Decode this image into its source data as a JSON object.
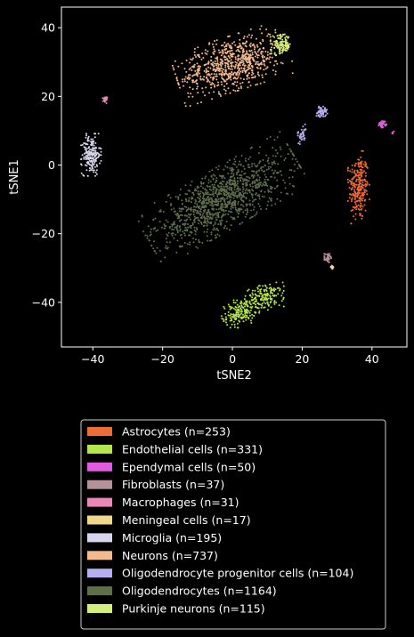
{
  "chart_data": {
    "type": "scatter",
    "title": "",
    "xlabel": "tSNE2",
    "ylabel": "tSNE1",
    "xlim": [
      -49,
      50
    ],
    "ylim": [
      -53,
      46
    ],
    "xticks": [
      -40,
      -20,
      0,
      20,
      40
    ],
    "yticks": [
      -40,
      -20,
      0,
      20,
      40
    ],
    "grid": false,
    "legend_position": "below",
    "series": [
      {
        "name": "Astrocytes (n=253)",
        "color": "#f06c36",
        "clusters": [
          {
            "cx": 36.2,
            "cy": -6.5,
            "sx": 1.4,
            "sy": 4.8,
            "rot": 0,
            "n": 253
          }
        ]
      },
      {
        "name": "Endothelial cells (n=331)",
        "color": "#b5e64e",
        "clusters": [
          {
            "cx": 2.0,
            "cy": -43.0,
            "sx": 2.4,
            "sy": 1.8,
            "rot": 20,
            "n": 170
          },
          {
            "cx": 9.5,
            "cy": -38.5,
            "sx": 2.6,
            "sy": 1.7,
            "rot": 10,
            "n": 161
          }
        ]
      },
      {
        "name": "Ependymal cells (n=50)",
        "color": "#e25ae0",
        "clusters": [
          {
            "cx": 43.0,
            "cy": 12.0,
            "sx": 0.5,
            "sy": 0.5,
            "rot": 0,
            "n": 46
          },
          {
            "cx": 46.0,
            "cy": 9.5,
            "sx": 0.2,
            "sy": 0.2,
            "rot": 0,
            "n": 4
          }
        ]
      },
      {
        "name": "Fibroblasts (n=37)",
        "color": "#b59299",
        "clusters": [
          {
            "cx": 27.3,
            "cy": -27.0,
            "sx": 0.45,
            "sy": 0.7,
            "rot": 0,
            "n": 37
          }
        ]
      },
      {
        "name": "Macrophages (n=31)",
        "color": "#e987b6",
        "clusters": [
          {
            "cx": -36.5,
            "cy": 19.0,
            "sx": 0.3,
            "sy": 0.45,
            "rot": 0,
            "n": 31
          }
        ]
      },
      {
        "name": "Meningeal cells (n=17)",
        "color": "#f0d88b",
        "clusters": [
          {
            "cx": 28.5,
            "cy": -29.8,
            "sx": 0.3,
            "sy": 0.3,
            "rot": 0,
            "n": 17
          }
        ]
      },
      {
        "name": "Microglia (n=195)",
        "color": "#d8d6ea",
        "clusters": [
          {
            "cx": -40.5,
            "cy": 3.0,
            "sx": 1.3,
            "sy": 2.8,
            "rot": 0,
            "n": 195
          }
        ]
      },
      {
        "name": "Neurons (n=737)",
        "color": "#f4b98d",
        "clusters": [
          {
            "cx": 0.0,
            "cy": 29.5,
            "sx": 7.5,
            "sy": 3.6,
            "rot": 18,
            "n": 737
          }
        ]
      },
      {
        "name": "Oligodendrocyte progenitor cells (n=104)",
        "color": "#b5aef0",
        "clusters": [
          {
            "cx": 25.5,
            "cy": 15.5,
            "sx": 0.8,
            "sy": 0.7,
            "rot": 0,
            "n": 60
          },
          {
            "cx": 20.0,
            "cy": 9.0,
            "sx": 0.6,
            "sy": 1.3,
            "rot": -30,
            "n": 44
          }
        ]
      },
      {
        "name": "Oligodendrocytes (n=1164)",
        "color": "#5e6f4a",
        "clusters": [
          {
            "cx": -3.0,
            "cy": -10.0,
            "sx": 11.0,
            "sy": 4.0,
            "rot": 30,
            "n": 1164
          }
        ]
      },
      {
        "name": "Purkinje neurons (n=115)",
        "color": "#d4ee7a",
        "clusters": [
          {
            "cx": 14.0,
            "cy": 35.0,
            "sx": 1.4,
            "sy": 1.4,
            "rot": 0,
            "n": 115
          }
        ]
      }
    ]
  }
}
